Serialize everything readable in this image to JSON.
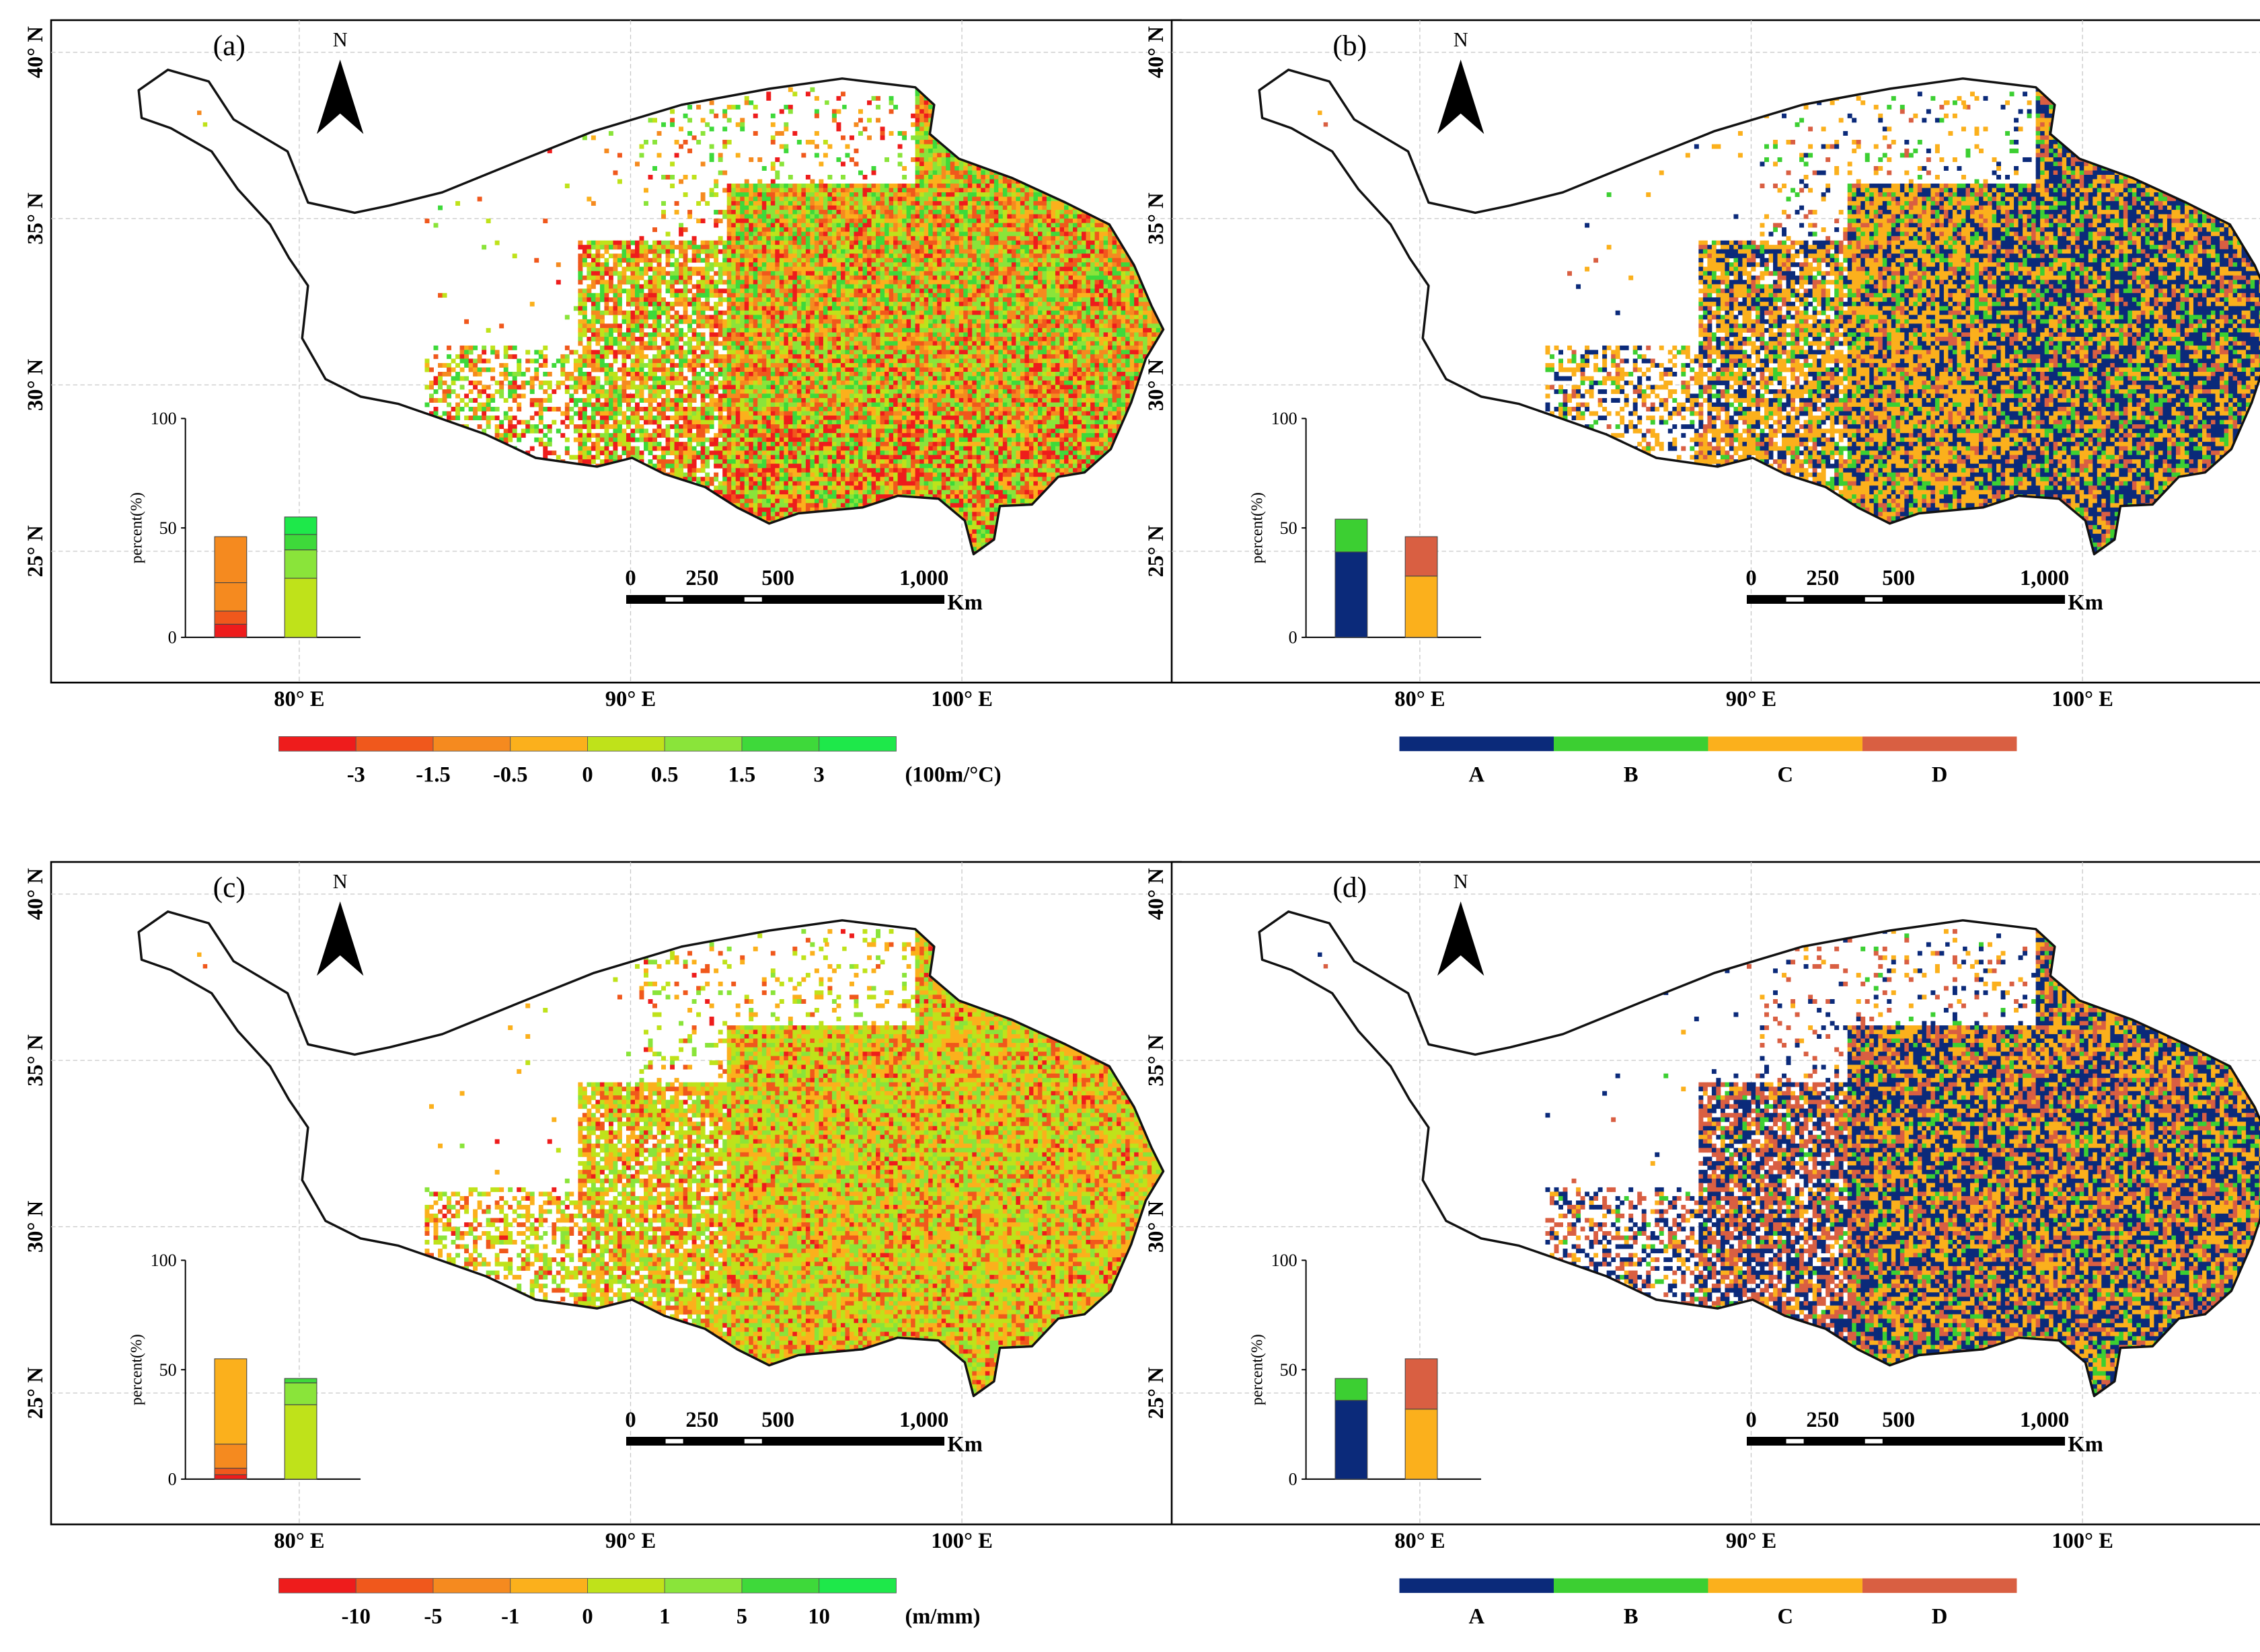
{
  "figure": {
    "colors": {
      "frame": "#000000",
      "grid": "#c8c8c8",
      "outline": "#111111",
      "trend_red": "#ee1c1c",
      "trend_orange_red": "#f0581c",
      "trend_orange": "#f58a1f",
      "trend_yellow": "#fbb01c",
      "trend_lime": "#bfe21a",
      "trend_light_green": "#8ae43a",
      "trend_green": "#3ed93a",
      "trend_bright_green": "#1ee84a",
      "class_A": "#0b2a7a",
      "class_B": "#3ccf32",
      "class_C": "#fbb01c",
      "class_D": "#d95f42"
    },
    "lat_labels": [
      "40° N",
      "35° N",
      "30° N",
      "25° N"
    ],
    "lon_labels": [
      "80° E",
      "90° E",
      "100° E"
    ],
    "north_label": "N",
    "scale_bar": {
      "labels": [
        "0",
        "250",
        "500",
        "1,000"
      ],
      "unit": "Km"
    },
    "inset_axis": {
      "ylabel": "percent(%)",
      "ticks": [
        "100",
        "50",
        "0"
      ]
    },
    "panels": [
      {
        "id": "a",
        "label": "(a)",
        "pattern": "temperature_trend",
        "legend": {
          "type": "gradient",
          "colors": [
            "#ee1c1c",
            "#f0581c",
            "#f58a1f",
            "#fbb01c",
            "#bfe21a",
            "#8ae43a",
            "#3ed93a",
            "#1ee84a"
          ],
          "labels": [
            "-3",
            "-1.5",
            "-0.5",
            "0",
            "0.5",
            "1.5",
            "3"
          ],
          "unit": "(100m/°C)"
        },
        "inset_bars": [
          {
            "segments": [
              {
                "value": 6,
                "color": "#ee1c1c"
              },
              {
                "value": 6,
                "color": "#f0581c"
              },
              {
                "value": 13,
                "color": "#f58a1f"
              },
              {
                "value": 21,
                "color": "#f58a1f"
              }
            ]
          },
          {
            "segments": [
              {
                "value": 27,
                "color": "#bfe21a"
              },
              {
                "value": 13,
                "color": "#8ae43a"
              },
              {
                "value": 7,
                "color": "#3ed93a"
              },
              {
                "value": 8,
                "color": "#1ee84a"
              }
            ]
          }
        ]
      },
      {
        "id": "b",
        "label": "(b)",
        "pattern": "class_b",
        "legend": {
          "type": "category",
          "colors": [
            "#0b2a7a",
            "#3ccf32",
            "#fbb01c",
            "#d95f42"
          ],
          "labels": [
            "A",
            "B",
            "C",
            "D"
          ]
        },
        "inset_bars": [
          {
            "segments": [
              {
                "value": 39,
                "color": "#0b2a7a"
              },
              {
                "value": 15,
                "color": "#3ccf32"
              }
            ]
          },
          {
            "segments": [
              {
                "value": 28,
                "color": "#fbb01c"
              },
              {
                "value": 18,
                "color": "#d95f42"
              }
            ]
          }
        ]
      },
      {
        "id": "c",
        "label": "(c)",
        "pattern": "precip_trend",
        "legend": {
          "type": "gradient",
          "colors": [
            "#ee1c1c",
            "#f0581c",
            "#f58a1f",
            "#fbb01c",
            "#bfe21a",
            "#8ae43a",
            "#3ed93a",
            "#1ee84a"
          ],
          "labels": [
            "-10",
            "-5",
            "-1",
            "0",
            "1",
            "5",
            "10"
          ],
          "unit": "(m/mm)"
        },
        "inset_bars": [
          {
            "segments": [
              {
                "value": 2,
                "color": "#ee1c1c"
              },
              {
                "value": 3,
                "color": "#f0581c"
              },
              {
                "value": 11,
                "color": "#f58a1f"
              },
              {
                "value": 39,
                "color": "#fbb01c"
              }
            ]
          },
          {
            "segments": [
              {
                "value": 34,
                "color": "#bfe21a"
              },
              {
                "value": 10,
                "color": "#8ae43a"
              },
              {
                "value": 2,
                "color": "#3ed93a"
              }
            ]
          }
        ]
      },
      {
        "id": "d",
        "label": "(d)",
        "pattern": "class_d",
        "legend": {
          "type": "category",
          "colors": [
            "#0b2a7a",
            "#3ccf32",
            "#fbb01c",
            "#d95f42"
          ],
          "labels": [
            "A",
            "B",
            "C",
            "D"
          ]
        },
        "inset_bars": [
          {
            "segments": [
              {
                "value": 36,
                "color": "#0b2a7a"
              },
              {
                "value": 10,
                "color": "#3ccf32"
              }
            ]
          },
          {
            "segments": [
              {
                "value": 32,
                "color": "#fbb01c"
              },
              {
                "value": 23,
                "color": "#d95f42"
              }
            ]
          }
        ]
      }
    ]
  }
}
